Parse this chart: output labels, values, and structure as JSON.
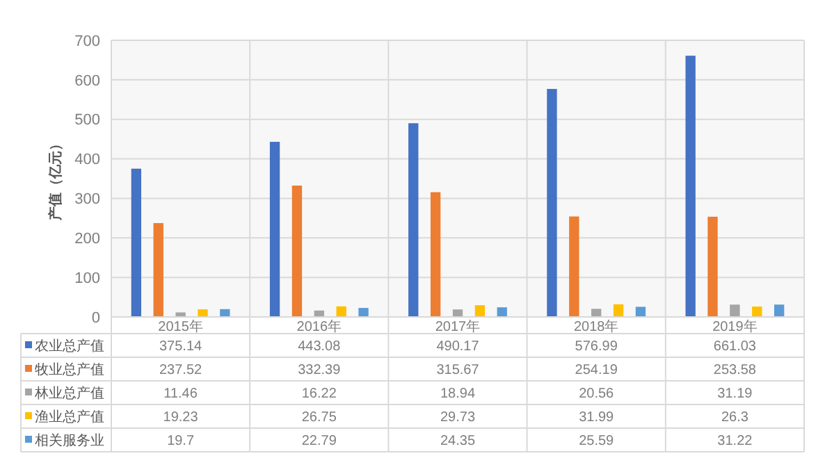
{
  "chart_data": {
    "type": "bar",
    "ylabel": "产值（亿元）",
    "categories": [
      "2015年",
      "2016年",
      "2017年",
      "2018年",
      "2019年"
    ],
    "series": [
      {
        "name": "农业总产值",
        "color": "#4472c4",
        "values": [
          375.14,
          443.08,
          490.17,
          576.99,
          661.03
        ]
      },
      {
        "name": "牧业总产值",
        "color": "#ed7d31",
        "values": [
          237.52,
          332.39,
          315.67,
          254.19,
          253.58
        ]
      },
      {
        "name": "林业总产值",
        "color": "#a5a5a5",
        "values": [
          11.46,
          16.22,
          18.94,
          20.56,
          31.19
        ]
      },
      {
        "name": "渔业总产值",
        "color": "#ffc000",
        "values": [
          19.23,
          26.75,
          29.73,
          31.99,
          26.3
        ]
      },
      {
        "name": "相关服务业",
        "color": "#5b9bd5",
        "values": [
          19.7,
          22.79,
          24.35,
          25.59,
          31.22
        ]
      }
    ],
    "ylim": [
      0,
      700
    ],
    "yticks": [
      0,
      100,
      200,
      300,
      400,
      500,
      600,
      700
    ],
    "grid": "y",
    "legend": "bottom",
    "data_labels": true
  }
}
